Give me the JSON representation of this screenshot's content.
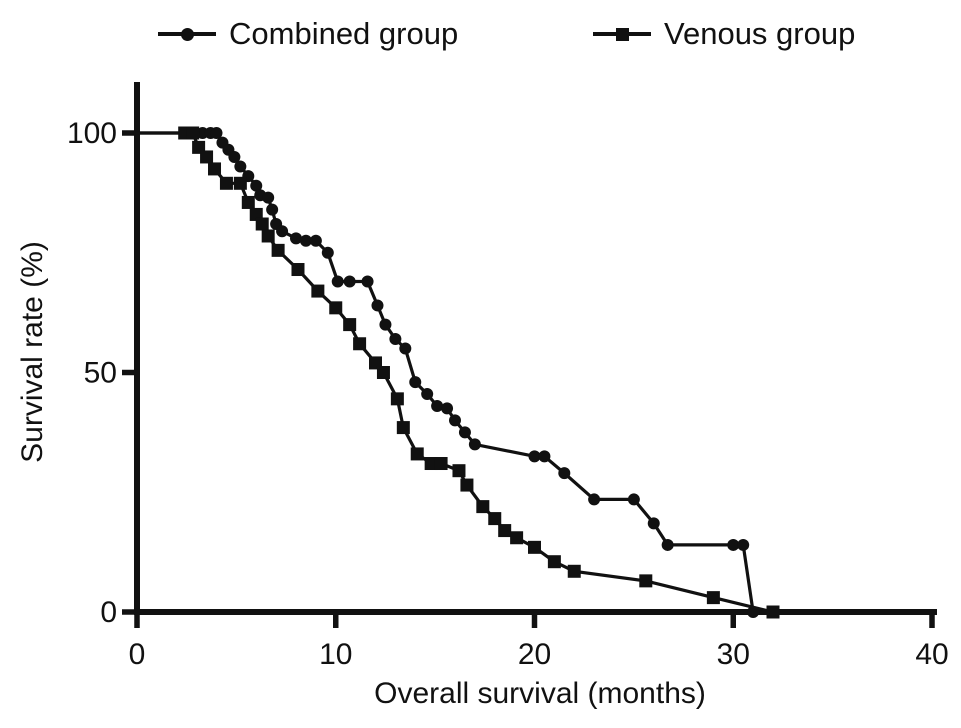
{
  "figure": {
    "background": "#ffffff",
    "ink": "#111111"
  },
  "legend": {
    "position": "top",
    "entries": [
      {
        "label": "Combined group",
        "marker": "circle"
      },
      {
        "label": "Venous group",
        "marker": "square"
      }
    ]
  },
  "axes": {
    "x": {
      "title": "Overall survival (months)",
      "ticks": [
        "0",
        "10",
        "20",
        "30",
        "40"
      ],
      "range": [
        0,
        40
      ]
    },
    "y": {
      "title": "Survival rate (%)",
      "ticks": [
        "0",
        "50",
        "100"
      ],
      "range": [
        0,
        100
      ]
    }
  },
  "chart_data": {
    "type": "line",
    "subtype": "kaplan-meier-survival",
    "title": "",
    "xlabel": "Overall survival (months)",
    "ylabel": "Survival rate (%)",
    "xlim": [
      0,
      40
    ],
    "ylim": [
      0,
      100
    ],
    "grid": false,
    "legend_position": "top",
    "x_ticks": [
      0,
      10,
      20,
      30,
      40
    ],
    "y_ticks": [
      0,
      50,
      100
    ],
    "series": [
      {
        "name": "Combined group",
        "marker": "circle",
        "color": "#111111",
        "line_start": [
          0,
          100
        ],
        "points": [
          [
            3.3,
            100
          ],
          [
            3.7,
            100
          ],
          [
            4.0,
            100
          ],
          [
            4.3,
            98
          ],
          [
            4.6,
            96.5
          ],
          [
            4.9,
            95
          ],
          [
            5.2,
            93
          ],
          [
            5.6,
            91
          ],
          [
            6.0,
            89
          ],
          [
            6.2,
            87
          ],
          [
            6.6,
            86.5
          ],
          [
            6.8,
            84
          ],
          [
            7.0,
            81
          ],
          [
            7.3,
            79.5
          ],
          [
            8.0,
            78
          ],
          [
            8.5,
            77.5
          ],
          [
            9.0,
            77.5
          ],
          [
            9.6,
            75
          ],
          [
            10.1,
            69
          ],
          [
            10.7,
            69
          ],
          [
            11.6,
            69
          ],
          [
            12.1,
            64
          ],
          [
            12.5,
            60
          ],
          [
            13.0,
            57
          ],
          [
            13.5,
            55
          ],
          [
            14.0,
            48
          ],
          [
            14.6,
            45.5
          ],
          [
            15.1,
            43
          ],
          [
            15.6,
            42.5
          ],
          [
            16.0,
            40
          ],
          [
            16.5,
            37.5
          ],
          [
            17.0,
            35
          ],
          [
            20.0,
            32.5
          ],
          [
            20.5,
            32.5
          ],
          [
            21.5,
            29
          ],
          [
            23.0,
            23.5
          ],
          [
            25.0,
            23.5
          ],
          [
            26.0,
            18.5
          ],
          [
            26.7,
            14
          ],
          [
            30.0,
            14
          ],
          [
            30.5,
            14
          ],
          [
            31.0,
            0
          ]
        ]
      },
      {
        "name": "Venous group",
        "marker": "square",
        "color": "#111111",
        "line_start": [
          0,
          100
        ],
        "points": [
          [
            2.4,
            100
          ],
          [
            2.8,
            100
          ],
          [
            3.1,
            97
          ],
          [
            3.5,
            95
          ],
          [
            3.9,
            92.5
          ],
          [
            4.5,
            89.5
          ],
          [
            5.2,
            89.5
          ],
          [
            5.6,
            85.5
          ],
          [
            6.0,
            83
          ],
          [
            6.3,
            81
          ],
          [
            6.6,
            78.5
          ],
          [
            7.1,
            75.5
          ],
          [
            8.1,
            71.5
          ],
          [
            9.1,
            67
          ],
          [
            10.0,
            63.5
          ],
          [
            10.7,
            60
          ],
          [
            11.2,
            56
          ],
          [
            12.0,
            52
          ],
          [
            12.4,
            50
          ],
          [
            13.1,
            44.5
          ],
          [
            13.4,
            38.5
          ],
          [
            14.1,
            33
          ],
          [
            14.8,
            31
          ],
          [
            15.3,
            31
          ],
          [
            16.2,
            29.5
          ],
          [
            16.6,
            26.5
          ],
          [
            17.4,
            22
          ],
          [
            18.0,
            19.5
          ],
          [
            18.5,
            17
          ],
          [
            19.1,
            15.5
          ],
          [
            20.0,
            13.5
          ],
          [
            21.0,
            10.5
          ],
          [
            22.0,
            8.5
          ],
          [
            25.6,
            6.5
          ],
          [
            29.0,
            3
          ],
          [
            32.0,
            0
          ]
        ]
      }
    ]
  }
}
